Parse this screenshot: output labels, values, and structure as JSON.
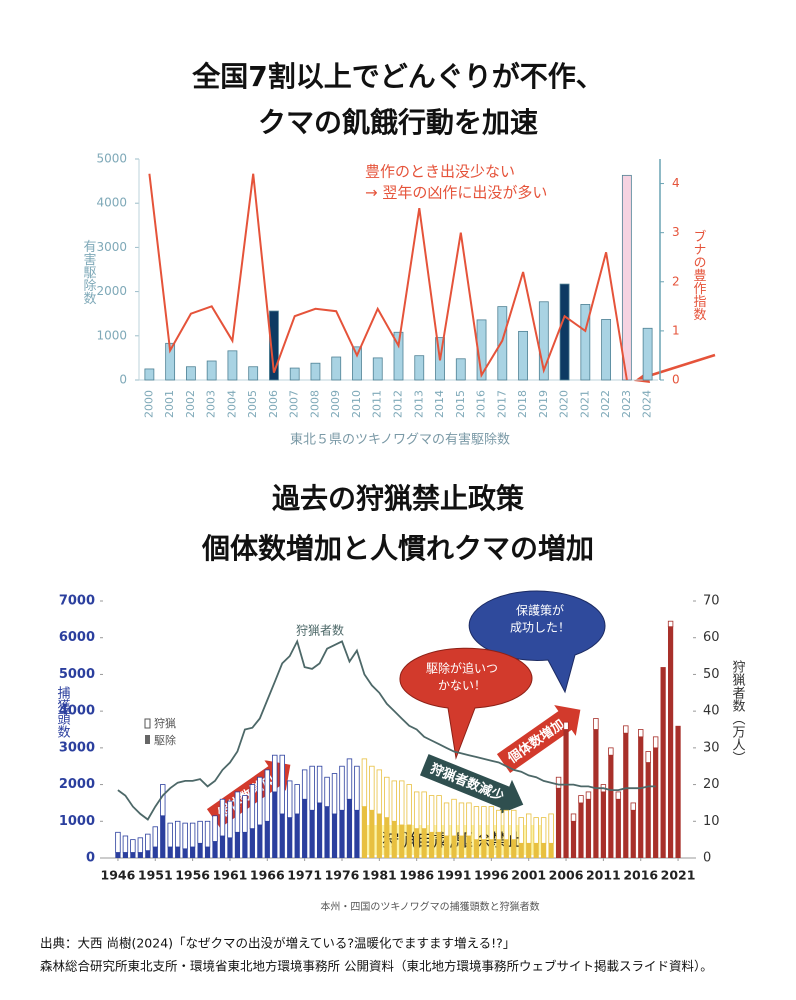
{
  "chart_data": [
    {
      "type": "bar_line",
      "title": [
        "全国7割以上でどんぐりが不作、",
        "クマの飢餓行動を加速"
      ],
      "annotation": [
        "豊作のとき出没少ない",
        "→ 翌年の凶作に出没が多い"
      ],
      "xlabel": "東北５県のツキノワグマの有害駆除数",
      "categories": [
        "2000",
        "2001",
        "2002",
        "2003",
        "2004",
        "2005",
        "2006",
        "2007",
        "2008",
        "2009",
        "2010",
        "2011",
        "2012",
        "2013",
        "2014",
        "2015",
        "2016",
        "2017",
        "2018",
        "2019",
        "2020",
        "2021",
        "2022",
        "2023",
        "2024"
      ],
      "series": [
        {
          "name": "有害駆除数",
          "type": "bar",
          "colors": [
            "#a9d3e3",
            "#a9d3e3",
            "#a9d3e3",
            "#a9d3e3",
            "#a9d3e3",
            "#a9d3e3",
            "#0d3a63",
            "#a9d3e3",
            "#a9d3e3",
            "#a9d3e3",
            "#a9d3e3",
            "#a9d3e3",
            "#a9d3e3",
            "#a9d3e3",
            "#a9d3e3",
            "#a9d3e3",
            "#a9d3e3",
            "#a9d3e3",
            "#a9d3e3",
            "#a9d3e3",
            "#0d3a63",
            "#a9d3e3",
            "#a9d3e3",
            "#f6d3e1",
            "#a9d3e3"
          ],
          "values": [
            250,
            830,
            300,
            430,
            660,
            300,
            1560,
            270,
            380,
            520,
            750,
            500,
            1080,
            550,
            960,
            480,
            1360,
            1660,
            1100,
            1770,
            2170,
            1710,
            1370,
            4630,
            1170
          ]
        },
        {
          "name": "ブナの豊作指数",
          "type": "line",
          "axis": "y2",
          "color": "#e5533a",
          "values": [
            4.2,
            0.6,
            1.35,
            1.5,
            0.8,
            4.2,
            0.15,
            1.3,
            1.45,
            1.4,
            0.5,
            1.45,
            0.7,
            3.5,
            0.4,
            3.0,
            0.1,
            0.8,
            2.2,
            0.2,
            1.3,
            1.0,
            2.6,
            0,
            null
          ]
        }
      ],
      "ylim": [
        0,
        5000
      ],
      "yticks": [
        0,
        1000,
        2000,
        3000,
        4000,
        5000
      ],
      "y2lim": [
        0,
        4.5
      ],
      "y2ticks": [
        0,
        1,
        2,
        3,
        4
      ]
    },
    {
      "type": "stacked_bar_line",
      "title": [
        "過去の狩猟禁止政策",
        "個体数増加と人慣れクマの増加"
      ],
      "x": [
        1946,
        1947,
        1948,
        1949,
        1950,
        1951,
        1952,
        1953,
        1954,
        1955,
        1956,
        1957,
        1958,
        1959,
        1960,
        1961,
        1962,
        1963,
        1964,
        1965,
        1966,
        1967,
        1968,
        1969,
        1970,
        1971,
        1972,
        1973,
        1974,
        1975,
        1976,
        1977,
        1978,
        1979,
        1980,
        1981,
        1982,
        1983,
        1984,
        1985,
        1986,
        1987,
        1988,
        1989,
        1990,
        1991,
        1992,
        1993,
        1994,
        1995,
        1996,
        1997,
        1998,
        1999,
        2000,
        2001,
        2002,
        2003,
        2004,
        2005,
        2006,
        2007,
        2008,
        2009,
        2010,
        2011,
        2012,
        2013,
        2014,
        2015,
        2016,
        2017,
        2018,
        2019,
        2020,
        2021
      ],
      "xlim": [
        1944,
        2023
      ],
      "xticks": [
        1946,
        1951,
        1956,
        1961,
        1966,
        1971,
        1976,
        1981,
        1986,
        1991,
        1996,
        2001,
        2006,
        2011,
        2016,
        2021
      ],
      "ylabel": "捕獲頭数",
      "y2label": "狩猟者数（万人）",
      "series": [
        {
          "name": "駆除",
          "values": [
            150,
            150,
            150,
            150,
            200,
            300,
            1150,
            300,
            300,
            250,
            300,
            400,
            300,
            450,
            600,
            550,
            700,
            700,
            800,
            900,
            1000,
            1800,
            1200,
            1100,
            1200,
            1600,
            1300,
            1500,
            1400,
            1200,
            1300,
            1600,
            1300,
            1400,
            1300,
            1200,
            1100,
            1000,
            900,
            900,
            800,
            800,
            700,
            700,
            600,
            600,
            600,
            600,
            500,
            500,
            500,
            500,
            500,
            500,
            400,
            400,
            400,
            400,
            400,
            1900,
            3500,
            1000,
            1500,
            1600,
            3500,
            1800,
            2800,
            1600,
            3400,
            1300,
            3300,
            2600,
            3000,
            5200,
            6300,
            3600
          ]
        },
        {
          "name": "狩猟",
          "values": [
            550,
            450,
            350,
            400,
            450,
            550,
            850,
            650,
            700,
            700,
            650,
            600,
            700,
            700,
            1000,
            1000,
            1100,
            1000,
            1200,
            1300,
            1400,
            1000,
            1600,
            1000,
            800,
            800,
            1200,
            1000,
            800,
            1100,
            1200,
            1100,
            1200,
            1300,
            1200,
            1200,
            1100,
            1100,
            1200,
            1100,
            1000,
            1000,
            1000,
            1000,
            900,
            1000,
            900,
            900,
            900,
            900,
            900,
            800,
            800,
            800,
            700,
            800,
            700,
            700,
            800,
            300,
            200,
            200,
            200,
            200,
            300,
            200,
            200,
            200,
            200,
            200,
            200,
            300,
            300,
            0,
            150,
            0
          ]
        },
        {
          "name": "狩猟者数",
          "axis": "y2",
          "color": "#4d6868",
          "values": [
            18.5,
            17,
            14,
            12,
            10.5,
            14,
            17,
            19,
            20.5,
            21,
            21,
            21.5,
            19.5,
            21,
            24,
            26,
            29,
            35,
            35.5,
            38,
            43,
            48,
            53,
            55,
            59,
            52,
            51.5,
            53,
            57,
            58,
            59,
            53.5,
            56.5,
            50,
            47,
            45,
            42,
            40,
            38,
            36,
            35,
            33,
            32,
            31,
            30,
            29,
            28.5,
            28,
            27.5,
            27,
            26.5,
            26,
            25,
            24,
            23.5,
            22.5,
            22,
            21,
            20.5,
            20,
            20,
            20,
            19.5,
            19.5,
            19,
            19,
            18.5,
            18.5,
            19,
            19,
            19,
            19.5,
            19.5,
            null,
            null,
            null
          ]
        }
      ],
      "bar_colors": [
        "#2b3f9e",
        "#2b3f9e",
        "#2b3f9e",
        "#2b3f9e",
        "#2b3f9e",
        "#2b3f9e",
        "#2b3f9e",
        "#2b3f9e",
        "#2b3f9e",
        "#2b3f9e",
        "#2b3f9e",
        "#2b3f9e",
        "#2b3f9e",
        "#2b3f9e",
        "#2b3f9e",
        "#2b3f9e",
        "#2b3f9e",
        "#2b3f9e",
        "#2b3f9e",
        "#2b3f9e",
        "#2b3f9e",
        "#2b3f9e",
        "#2b3f9e",
        "#2b3f9e",
        "#2b3f9e",
        "#2b3f9e",
        "#2b3f9e",
        "#2b3f9e",
        "#2b3f9e",
        "#2b3f9e",
        "#2b3f9e",
        "#2b3f9e",
        "#2b3f9e",
        "#e8c040",
        "#e8c040",
        "#e8c040",
        "#e8c040",
        "#e8c040",
        "#e8c040",
        "#e8c040",
        "#e8c040",
        "#e8c040",
        "#e8c040",
        "#e8c040",
        "#e8c040",
        "#e8c040",
        "#e8c040",
        "#e8c040",
        "#e8c040",
        "#e8c040",
        "#e8c040",
        "#e8c040",
        "#e8c040",
        "#e8c040",
        "#e8c040",
        "#e8c040",
        "#e8c040",
        "#e8c040",
        "#e8c040",
        "#a8302a",
        "#a8302a",
        "#a8302a",
        "#a8302a",
        "#a8302a",
        "#a8302a",
        "#a8302a",
        "#a8302a",
        "#a8302a",
        "#a8302a",
        "#a8302a",
        "#a8302a",
        "#a8302a",
        "#a8302a",
        "#a8302a",
        "#a8302a",
        "#a8302a"
      ],
      "ylim": [
        0,
        7000
      ],
      "yticks": [
        0,
        1000,
        2000,
        3000,
        4000,
        5000,
        6000,
        7000
      ],
      "y2lim": [
        0,
        70
      ],
      "y2ticks": [
        0,
        10,
        20,
        30,
        40,
        50,
        60,
        70
      ],
      "annotations": {
        "protect": [
          "保護策が",
          "成功した！"
        ],
        "cull": [
          "駆除が追いつ",
          "かない！"
        ],
        "increase": "個体数増加",
        "decrease": "狩猟者数減少",
        "ban": "狩猟自粛/駆除禁止"
      },
      "caption": "本州・四国のツキノワグマの捕獲頭数と狩猟者数"
    }
  ],
  "source": [
    "出典：大西 尚樹(2024)「なぜクマの出没が増えている?温暖化でますます増える!?」",
    "森林総合研究所東北支所・環境省東北地方環境事務所 公開資料（東北地方環境事務所ウェブサイト掲載スライド資料）。"
  ]
}
